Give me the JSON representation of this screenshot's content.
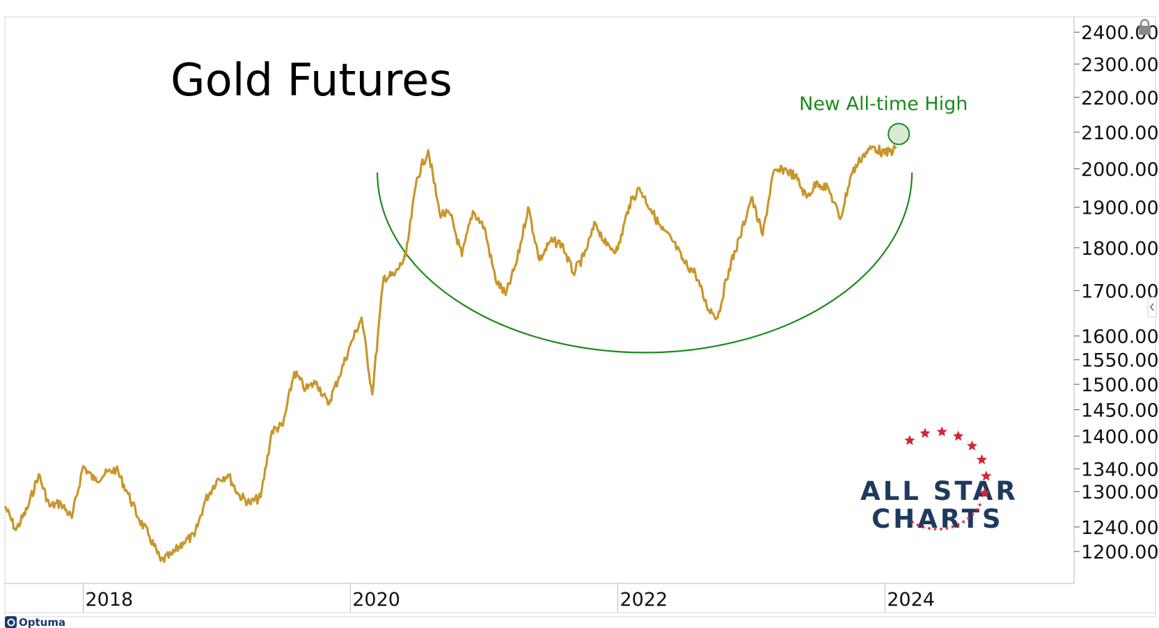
{
  "chart_data": {
    "type": "line",
    "title": "Gold Futures",
    "annotation": "New All-time High",
    "y_scale": "log",
    "ylim": [
      1150,
      2450
    ],
    "xlim": [
      "2017-06-01",
      "2025-06-01"
    ],
    "y_ticks": [
      "2400.00",
      "2300.00",
      "2200.00",
      "2100.00",
      "2000.00",
      "1900.00",
      "1800.00",
      "1700.00",
      "1600.00",
      "1550.00",
      "1500.00",
      "1450.00",
      "1400.00",
      "1340.00",
      "1300.00",
      "1240.00",
      "1200.00"
    ],
    "x_ticks": [
      "2018",
      "2020",
      "2022",
      "2024"
    ],
    "grid": false,
    "series": [
      {
        "color": "#c8962a",
        "points": [
          [
            "2017-06-01",
            1275
          ],
          [
            "2017-07-01",
            1235
          ],
          [
            "2017-08-01",
            1270
          ],
          [
            "2017-09-01",
            1330
          ],
          [
            "2017-10-01",
            1275
          ],
          [
            "2017-11-01",
            1280
          ],
          [
            "2017-12-01",
            1255
          ],
          [
            "2018-01-01",
            1345
          ],
          [
            "2018-02-01",
            1320
          ],
          [
            "2018-03-01",
            1330
          ],
          [
            "2018-04-01",
            1340
          ],
          [
            "2018-05-01",
            1300
          ],
          [
            "2018-06-01",
            1255
          ],
          [
            "2018-07-01",
            1225
          ],
          [
            "2018-08-01",
            1185
          ],
          [
            "2018-09-01",
            1195
          ],
          [
            "2018-10-01",
            1215
          ],
          [
            "2018-11-01",
            1225
          ],
          [
            "2018-12-01",
            1285
          ],
          [
            "2019-01-01",
            1320
          ],
          [
            "2019-02-01",
            1330
          ],
          [
            "2019-03-01",
            1295
          ],
          [
            "2019-04-01",
            1280
          ],
          [
            "2019-05-01",
            1290
          ],
          [
            "2019-06-01",
            1410
          ],
          [
            "2019-07-01",
            1420
          ],
          [
            "2019-08-01",
            1525
          ],
          [
            "2019-09-01",
            1490
          ],
          [
            "2019-10-01",
            1505
          ],
          [
            "2019-11-01",
            1460
          ],
          [
            "2019-12-01",
            1515
          ],
          [
            "2020-01-01",
            1580
          ],
          [
            "2020-02-01",
            1640
          ],
          [
            "2020-03-01",
            1480
          ],
          [
            "2020-04-01",
            1730
          ],
          [
            "2020-05-01",
            1735
          ],
          [
            "2020-06-01",
            1780
          ],
          [
            "2020-07-01",
            1975
          ],
          [
            "2020-08-01",
            2050
          ],
          [
            "2020-09-01",
            1885
          ],
          [
            "2020-10-01",
            1880
          ],
          [
            "2020-11-01",
            1780
          ],
          [
            "2020-12-01",
            1890
          ],
          [
            "2021-01-01",
            1850
          ],
          [
            "2021-02-01",
            1725
          ],
          [
            "2021-03-01",
            1690
          ],
          [
            "2021-04-01",
            1770
          ],
          [
            "2021-05-01",
            1900
          ],
          [
            "2021-06-01",
            1770
          ],
          [
            "2021-07-01",
            1815
          ],
          [
            "2021-08-01",
            1810
          ],
          [
            "2021-09-01",
            1740
          ],
          [
            "2021-10-01",
            1780
          ],
          [
            "2021-11-01",
            1860
          ],
          [
            "2021-12-01",
            1805
          ],
          [
            "2022-01-01",
            1795
          ],
          [
            "2022-02-01",
            1905
          ],
          [
            "2022-03-01",
            1950
          ],
          [
            "2022-04-01",
            1895
          ],
          [
            "2022-05-01",
            1845
          ],
          [
            "2022-06-01",
            1815
          ],
          [
            "2022-07-01",
            1765
          ],
          [
            "2022-08-01",
            1740
          ],
          [
            "2022-09-01",
            1665
          ],
          [
            "2022-10-01",
            1640
          ],
          [
            "2022-11-01",
            1750
          ],
          [
            "2022-12-01",
            1825
          ],
          [
            "2023-01-01",
            1925
          ],
          [
            "2023-02-01",
            1830
          ],
          [
            "2023-03-01",
            1985
          ],
          [
            "2023-04-01",
            2000
          ],
          [
            "2023-05-01",
            1980
          ],
          [
            "2023-06-01",
            1925
          ],
          [
            "2023-07-01",
            1965
          ],
          [
            "2023-08-01",
            1945
          ],
          [
            "2023-09-01",
            1870
          ],
          [
            "2023-10-01",
            1985
          ],
          [
            "2023-11-01",
            2035
          ],
          [
            "2023-12-01",
            2060
          ],
          [
            "2024-01-01",
            2040
          ],
          [
            "2024-02-01",
            2055
          ]
        ]
      }
    ],
    "highlight_point": [
      "2024-02-08",
      2095
    ],
    "arc": {
      "x_start": "2020-03-15",
      "x_end": "2024-03-15",
      "y_top": 1990,
      "y_bottom": 1565,
      "color": "#1a8a1a"
    }
  },
  "ui": {
    "lock_icon": "lock-icon",
    "collapse_icon": "chevron-left-icon",
    "brand_logo": "Optuma",
    "watermark_line1": "ALL STAR",
    "watermark_line2": "CHARTS",
    "colors": {
      "line": "#c8962a",
      "annotation": "#1a8a1a",
      "logo_text": "#1f3a5f",
      "logo_star": "#d0283a",
      "optuma": "#1a3a6b"
    }
  }
}
